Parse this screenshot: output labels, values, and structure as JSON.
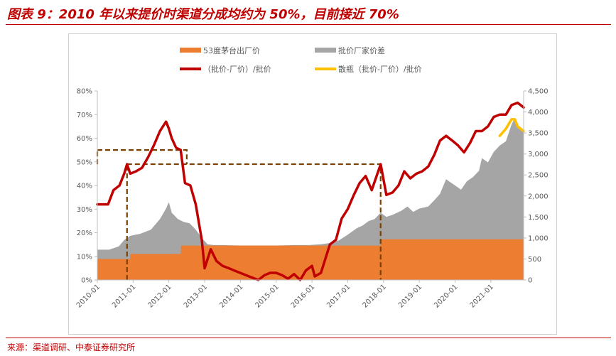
{
  "figure": {
    "title": "图表 9：2010 年以来提价时渠道分成均约为 50%，目前接近 70%",
    "source": "来源：渠道调研、中泰证券研究所"
  },
  "colors": {
    "factory_price": "#ed7d31",
    "wholesale_gap": "#a5a5a5",
    "ratio_line": "#c00000",
    "bulk_ratio_line": "#ffc000",
    "dashed_box": "#7b3f00",
    "title_red": "#c00000"
  },
  "chart_data": {
    "type": "area",
    "title": "",
    "legend_position": "top",
    "x_tick_labels": [
      "2010-01",
      "2011-01",
      "2012-01",
      "2013-01",
      "2014-01",
      "2015-01",
      "2016-01",
      "2017-01",
      "2018-01",
      "2019-01",
      "2020-01",
      "2021-01"
    ],
    "x_range": [
      2010.0,
      2021.917
    ],
    "y_left": {
      "range": [
        0,
        80
      ],
      "ticks": [
        "0%",
        "10%",
        "20%",
        "30%",
        "40%",
        "50%",
        "60%",
        "70%",
        "80%"
      ]
    },
    "y_right": {
      "range": [
        0,
        4500
      ],
      "ticks": [
        "0",
        "500",
        "1,000",
        "1,500",
        "2,000",
        "2,500",
        "3,000",
        "3,500",
        "4,000",
        "4,500"
      ]
    },
    "series": [
      {
        "name": "53度茅台出厂价",
        "type": "area",
        "axis": "right",
        "points": [
          [
            2010.0,
            499
          ],
          [
            2010.917,
            499
          ],
          [
            2010.92,
            619
          ],
          [
            2012.333,
            619
          ],
          [
            2012.337,
            819
          ],
          [
            2017.917,
            819
          ],
          [
            2017.92,
            969
          ],
          [
            2021.917,
            969
          ]
        ]
      },
      {
        "name": "批价厂家价差",
        "type": "stacked-area",
        "axis": "right",
        "totals": [
          [
            2010.0,
            720
          ],
          [
            2010.33,
            720
          ],
          [
            2010.6,
            800
          ],
          [
            2010.75,
            950
          ],
          [
            2010.92,
            1050
          ],
          [
            2011.2,
            1100
          ],
          [
            2011.5,
            1200
          ],
          [
            2011.75,
            1450
          ],
          [
            2011.92,
            1700
          ],
          [
            2012.0,
            1850
          ],
          [
            2012.08,
            1600
          ],
          [
            2012.25,
            1450
          ],
          [
            2012.42,
            1380
          ],
          [
            2012.58,
            1350
          ],
          [
            2012.75,
            1200
          ],
          [
            2012.92,
            1000
          ],
          [
            2013.08,
            850
          ],
          [
            2013.25,
            830
          ],
          [
            2013.5,
            830
          ],
          [
            2014.0,
            820
          ],
          [
            2014.5,
            820
          ],
          [
            2015.0,
            820
          ],
          [
            2015.5,
            830
          ],
          [
            2015.92,
            830
          ],
          [
            2016.25,
            850
          ],
          [
            2016.5,
            880
          ],
          [
            2016.75,
            940
          ],
          [
            2017.0,
            1080
          ],
          [
            2017.25,
            1230
          ],
          [
            2017.42,
            1300
          ],
          [
            2017.58,
            1400
          ],
          [
            2017.75,
            1450
          ],
          [
            2017.92,
            1600
          ],
          [
            2018.08,
            1500
          ],
          [
            2018.25,
            1550
          ],
          [
            2018.5,
            1650
          ],
          [
            2018.67,
            1750
          ],
          [
            2018.83,
            1620
          ],
          [
            2019.0,
            1700
          ],
          [
            2019.25,
            1750
          ],
          [
            2019.42,
            1900
          ],
          [
            2019.58,
            2050
          ],
          [
            2019.75,
            2400
          ],
          [
            2019.83,
            2350
          ],
          [
            2020.0,
            2250
          ],
          [
            2020.17,
            2150
          ],
          [
            2020.33,
            2350
          ],
          [
            2020.5,
            2450
          ],
          [
            2020.67,
            2600
          ],
          [
            2020.75,
            2900
          ],
          [
            2020.92,
            2800
          ],
          [
            2021.08,
            3050
          ],
          [
            2021.25,
            3200
          ],
          [
            2021.42,
            3300
          ],
          [
            2021.58,
            3700
          ],
          [
            2021.67,
            3850
          ],
          [
            2021.75,
            3700
          ],
          [
            2021.917,
            3500
          ]
        ]
      },
      {
        "name": "（批价-厂价）/批价",
        "type": "line",
        "axis": "left",
        "points": [
          [
            2010.0,
            32
          ],
          [
            2010.3,
            32
          ],
          [
            2010.45,
            38
          ],
          [
            2010.62,
            40
          ],
          [
            2010.75,
            45
          ],
          [
            2010.83,
            49
          ],
          [
            2010.92,
            45
          ],
          [
            2011.08,
            46
          ],
          [
            2011.25,
            47.5
          ],
          [
            2011.42,
            52
          ],
          [
            2011.58,
            57
          ],
          [
            2011.75,
            63
          ],
          [
            2011.92,
            67
          ],
          [
            2012.0,
            64
          ],
          [
            2012.08,
            60
          ],
          [
            2012.2,
            56
          ],
          [
            2012.33,
            55
          ],
          [
            2012.45,
            41
          ],
          [
            2012.6,
            40
          ],
          [
            2012.75,
            32
          ],
          [
            2012.92,
            17
          ],
          [
            2013.0,
            5
          ],
          [
            2013.17,
            13
          ],
          [
            2013.33,
            8
          ],
          [
            2013.5,
            6
          ],
          [
            2013.67,
            5
          ],
          [
            2013.83,
            4
          ],
          [
            2014.08,
            2.5
          ],
          [
            2014.33,
            1
          ],
          [
            2014.5,
            0
          ],
          [
            2014.67,
            2
          ],
          [
            2014.83,
            3
          ],
          [
            2015.0,
            3
          ],
          [
            2015.17,
            2
          ],
          [
            2015.33,
            0.5
          ],
          [
            2015.5,
            2.5
          ],
          [
            2015.67,
            0
          ],
          [
            2015.83,
            4
          ],
          [
            2016.0,
            6
          ],
          [
            2016.08,
            1.5
          ],
          [
            2016.25,
            3
          ],
          [
            2016.5,
            15
          ],
          [
            2016.67,
            17
          ],
          [
            2016.83,
            26
          ],
          [
            2017.0,
            30
          ],
          [
            2017.17,
            36
          ],
          [
            2017.33,
            41
          ],
          [
            2017.5,
            44
          ],
          [
            2017.67,
            38
          ],
          [
            2017.92,
            49
          ],
          [
            2018.08,
            36
          ],
          [
            2018.25,
            37
          ],
          [
            2018.42,
            40
          ],
          [
            2018.58,
            46
          ],
          [
            2018.75,
            43
          ],
          [
            2018.92,
            45
          ],
          [
            2019.08,
            46
          ],
          [
            2019.25,
            48
          ],
          [
            2019.42,
            53
          ],
          [
            2019.58,
            59
          ],
          [
            2019.75,
            61
          ],
          [
            2019.92,
            59
          ],
          [
            2020.08,
            57
          ],
          [
            2020.25,
            54
          ],
          [
            2020.42,
            58
          ],
          [
            2020.58,
            63
          ],
          [
            2020.75,
            63
          ],
          [
            2020.92,
            65
          ],
          [
            2021.08,
            69
          ],
          [
            2021.25,
            70
          ],
          [
            2021.42,
            70
          ],
          [
            2021.58,
            74
          ],
          [
            2021.75,
            75
          ],
          [
            2021.917,
            73
          ]
        ]
      },
      {
        "name": "散瓶（批价-厂价）/批价",
        "type": "line",
        "axis": "left",
        "points": [
          [
            2021.25,
            61
          ],
          [
            2021.42,
            64
          ],
          [
            2021.58,
            68
          ],
          [
            2021.67,
            68
          ],
          [
            2021.75,
            65
          ],
          [
            2021.917,
            63
          ]
        ]
      }
    ],
    "annotations": [
      {
        "type": "dashed-box",
        "x": [
          2010.0,
          2012.5
        ],
        "y_left": [
          49,
          55
        ]
      },
      {
        "type": "dashed-box",
        "x": [
          2010.83,
          2017.92
        ],
        "y_left": [
          0,
          49
        ]
      }
    ]
  }
}
